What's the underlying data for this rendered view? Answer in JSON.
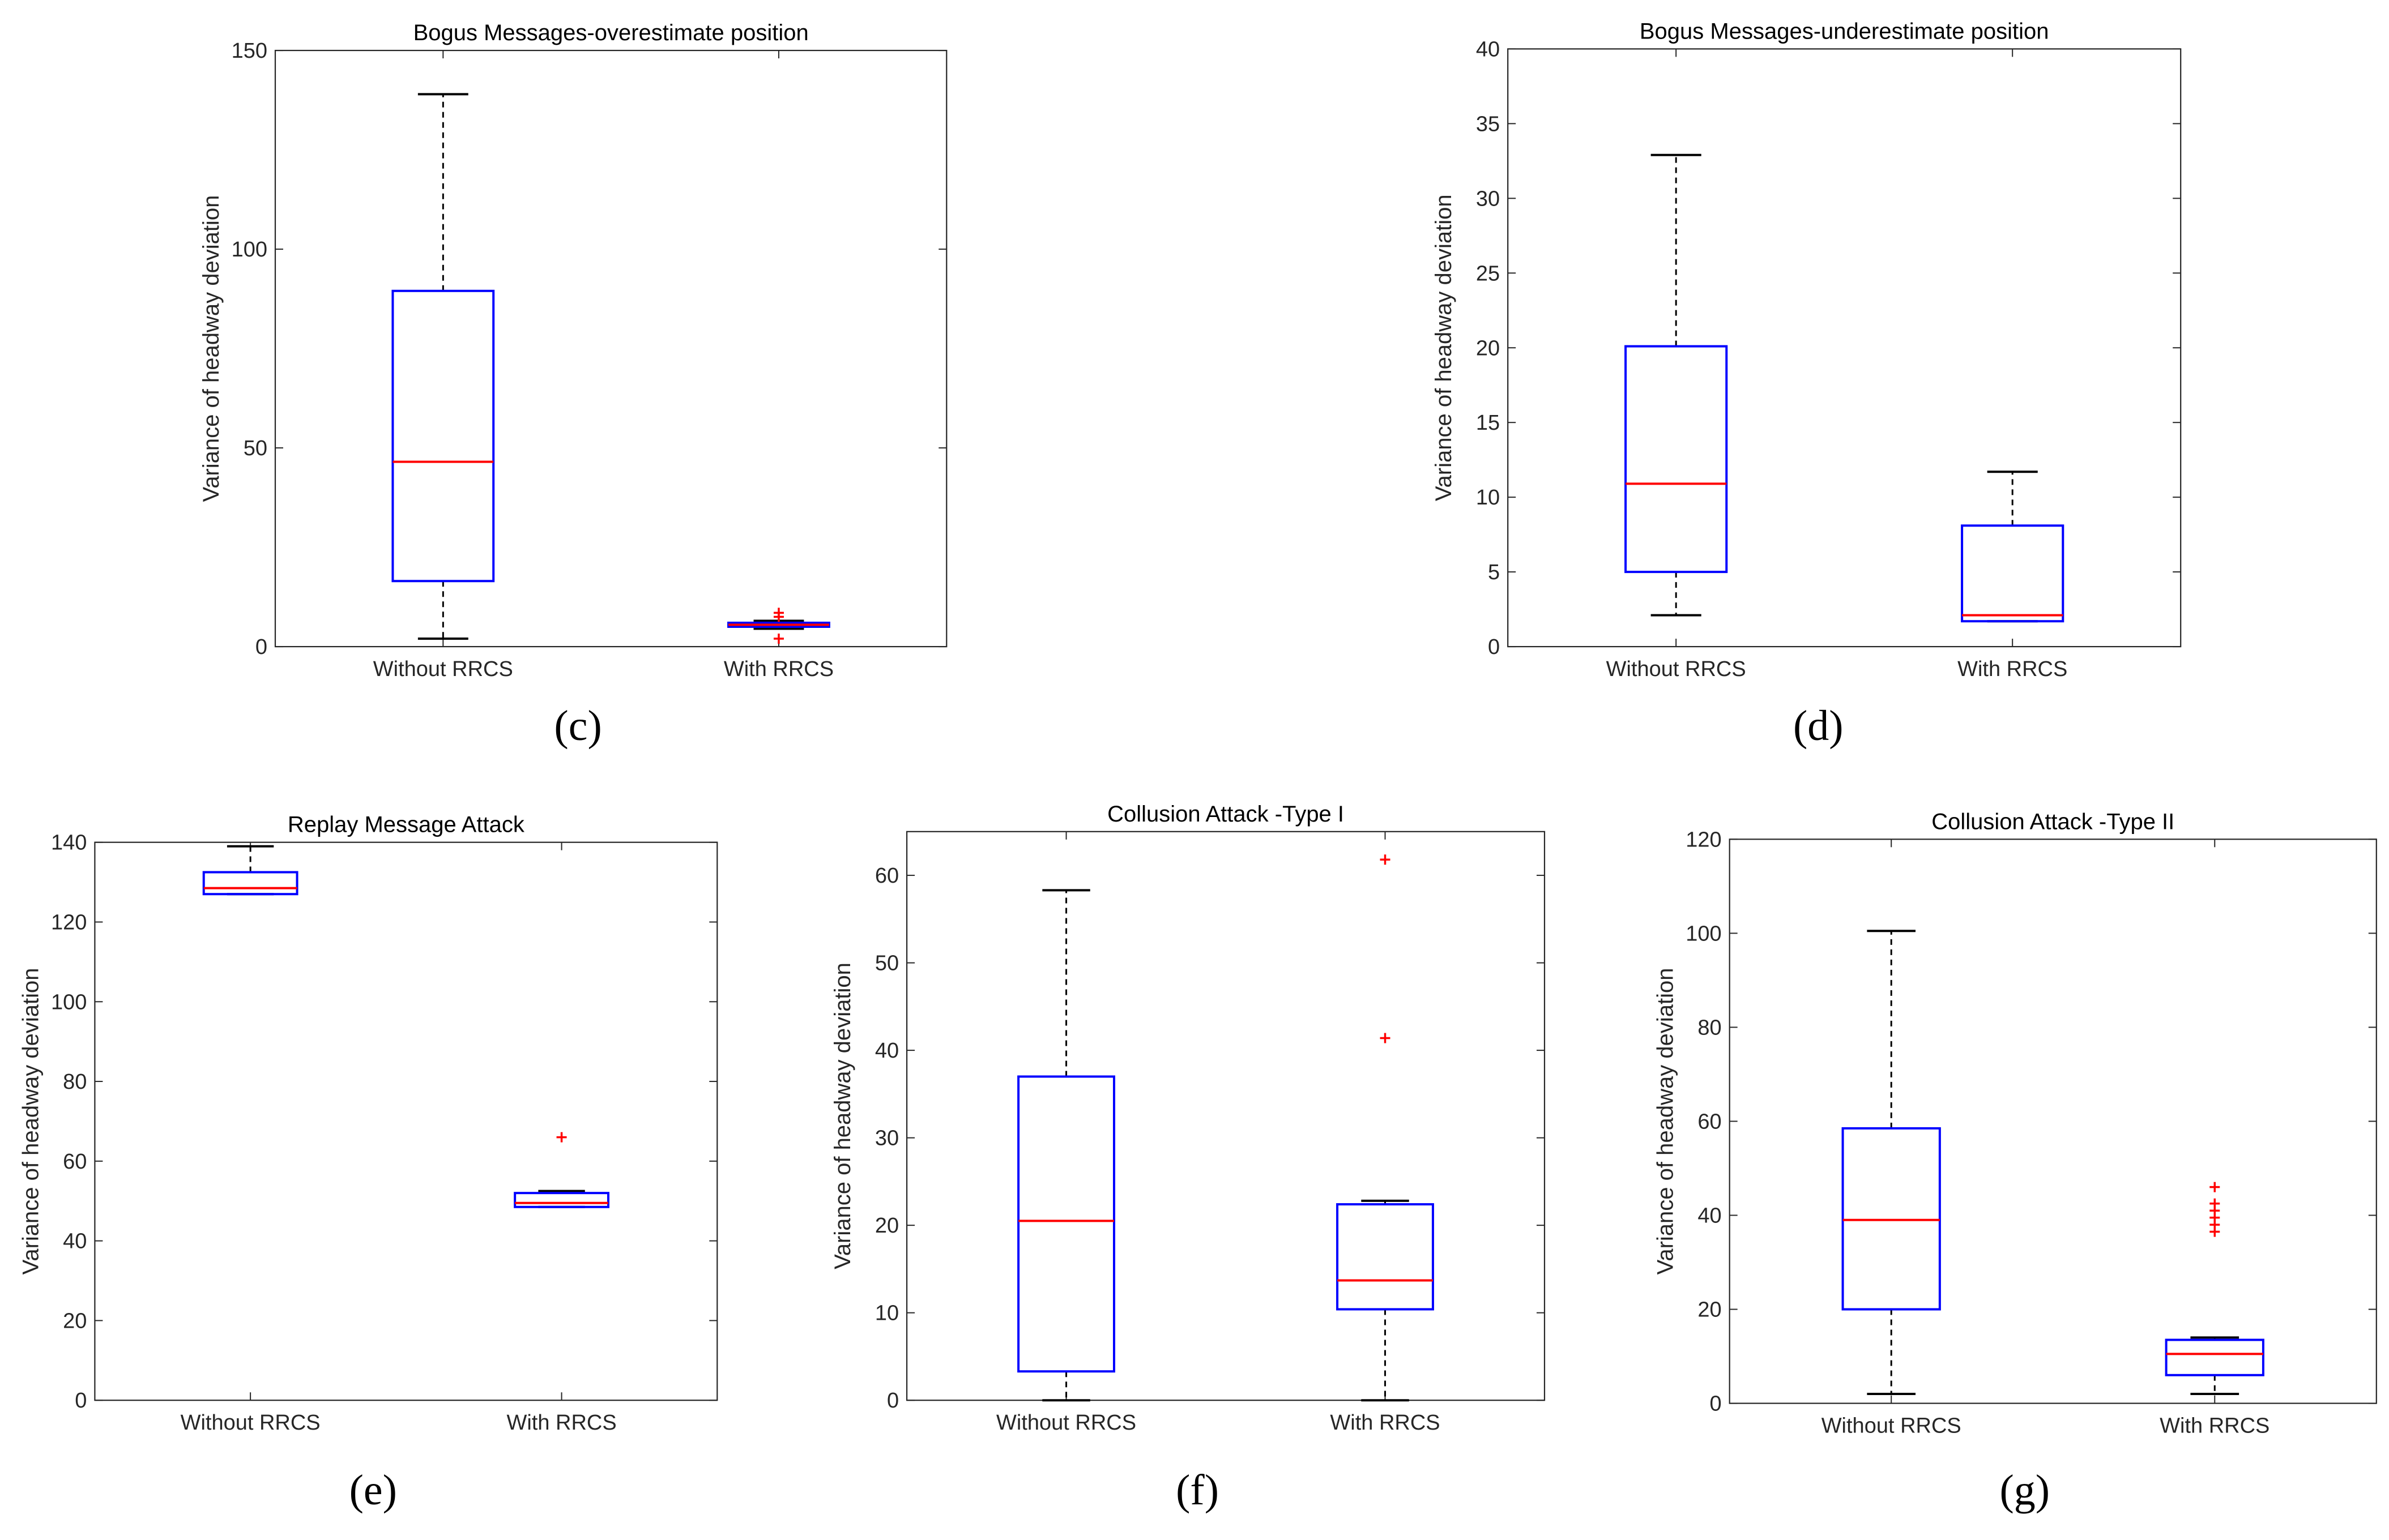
{
  "figure": {
    "style": {
      "box_color": "#0000ff",
      "median_color": "#ff0000",
      "outlier_color": "#ff0000",
      "whisker_color": "#000000"
    }
  },
  "chart_data": [
    {
      "type": "boxplot",
      "panel_label": "(c)",
      "title": "Bogus Messages-overestimate position",
      "xlabel": "",
      "ylabel": "Variance of headway deviation",
      "categories": [
        "Without RRCS",
        "With RRCS"
      ],
      "ylim": [
        0,
        150
      ],
      "yticks": [
        0,
        50,
        100,
        150
      ],
      "boxes": [
        {
          "name": "Without RRCS",
          "whisker_low": 2,
          "q1": 16.5,
          "median": 46.5,
          "q3": 89.5,
          "whisker_high": 139,
          "outliers": []
        },
        {
          "name": "With RRCS",
          "whisker_low": 4.5,
          "q1": 5,
          "median": 5.5,
          "q3": 6,
          "whisker_high": 6.5,
          "outliers": [
            2,
            7.5,
            8.5
          ]
        }
      ]
    },
    {
      "type": "boxplot",
      "panel_label": "(d)",
      "title": "Bogus Messages-underestimate position",
      "xlabel": "",
      "ylabel": "Variance of headway deviation",
      "categories": [
        "Without RRCS",
        "With RRCS"
      ],
      "ylim": [
        0,
        40
      ],
      "yticks": [
        0,
        5,
        10,
        15,
        20,
        25,
        30,
        35,
        40
      ],
      "boxes": [
        {
          "name": "Without RRCS",
          "whisker_low": 2.1,
          "q1": 5,
          "median": 10.9,
          "q3": 20.1,
          "whisker_high": 32.9,
          "outliers": []
        },
        {
          "name": "With RRCS",
          "whisker_low": 1.7,
          "q1": 1.7,
          "median": 2.1,
          "q3": 8.1,
          "whisker_high": 11.7,
          "outliers": []
        }
      ]
    },
    {
      "type": "boxplot",
      "panel_label": "(e)",
      "title": "Replay Message Attack",
      "xlabel": "",
      "ylabel": "Variance of headway deviation",
      "categories": [
        "Without RRCS",
        "With RRCS"
      ],
      "ylim": [
        0,
        140
      ],
      "yticks": [
        0,
        20,
        40,
        60,
        80,
        100,
        120,
        140
      ],
      "boxes": [
        {
          "name": "Without RRCS",
          "whisker_low": 127,
          "q1": 127,
          "median": 128.5,
          "q3": 132.5,
          "whisker_high": 139,
          "outliers": []
        },
        {
          "name": "With RRCS",
          "whisker_low": 48.5,
          "q1": 48.5,
          "median": 49.5,
          "q3": 52,
          "whisker_high": 52.5,
          "outliers": [
            66
          ]
        }
      ]
    },
    {
      "type": "boxplot",
      "panel_label": "(f)",
      "title": "Collusion Attack -Type I",
      "xlabel": "",
      "ylabel": "Variance of headway deviation",
      "categories": [
        "Without RRCS",
        "With RRCS"
      ],
      "ylim": [
        0,
        65
      ],
      "yticks": [
        0,
        10,
        20,
        30,
        40,
        50,
        60
      ],
      "boxes": [
        {
          "name": "Without RRCS",
          "whisker_low": 0,
          "q1": 3.3,
          "median": 20.5,
          "q3": 37,
          "whisker_high": 58.3,
          "outliers": []
        },
        {
          "name": "With RRCS",
          "whisker_low": 0,
          "q1": 10.4,
          "median": 13.7,
          "q3": 22.4,
          "whisker_high": 22.8,
          "outliers": [
            41.4,
            61.8
          ]
        }
      ]
    },
    {
      "type": "boxplot",
      "panel_label": "(g)",
      "title": "Collusion Attack -Type II",
      "xlabel": "",
      "ylabel": "Variance of headway deviation",
      "categories": [
        "Without RRCS",
        "With RRCS"
      ],
      "ylim": [
        0,
        120
      ],
      "yticks": [
        0,
        20,
        40,
        60,
        80,
        100,
        120
      ],
      "boxes": [
        {
          "name": "Without RRCS",
          "whisker_low": 2,
          "q1": 20,
          "median": 39,
          "q3": 58.5,
          "whisker_high": 100.5,
          "outliers": []
        },
        {
          "name": "With RRCS",
          "whisker_low": 2,
          "q1": 6,
          "median": 10.5,
          "q3": 13.5,
          "whisker_high": 14,
          "outliers": [
            36.5,
            38,
            39.5,
            41,
            42.5,
            46
          ]
        }
      ]
    }
  ]
}
